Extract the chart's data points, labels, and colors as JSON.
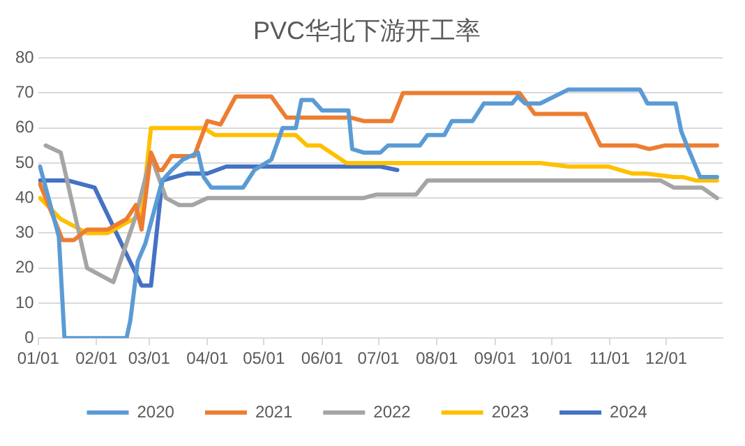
{
  "chart_data": {
    "type": "line",
    "title": "PVC华北下游开工率",
    "xlim": [
      "--01-01",
      "--12-31"
    ],
    "xticks": [
      {
        "value": "--01-01",
        "label": "01/01"
      },
      {
        "value": "--02-01",
        "label": "02/01"
      },
      {
        "value": "--03-01",
        "label": "03/01"
      },
      {
        "value": "--04-01",
        "label": "04/01"
      },
      {
        "value": "--05-01",
        "label": "05/01"
      },
      {
        "value": "--06-01",
        "label": "06/01"
      },
      {
        "value": "--07-01",
        "label": "07/01"
      },
      {
        "value": "--08-01",
        "label": "08/01"
      },
      {
        "value": "--09-01",
        "label": "09/01"
      },
      {
        "value": "--10-01",
        "label": "10/01"
      },
      {
        "value": "--11-01",
        "label": "11/01"
      },
      {
        "value": "--12-01",
        "label": "12/01"
      }
    ],
    "ylim": [
      0,
      80
    ],
    "yticks": [
      0,
      10,
      20,
      30,
      40,
      50,
      60,
      70,
      80
    ],
    "grid": "y",
    "legend": "bottom",
    "marker": "none",
    "line_style": "solid",
    "series": [
      {
        "name": "2020",
        "color": "#5b9bd5",
        "x": [
          "--01-02",
          "--01-12",
          "--01-15",
          "--02-17",
          "--02-19",
          "--02-23",
          "--02-27",
          "--03-03",
          "--03-08",
          "--03-13",
          "--03-19",
          "--03-27",
          "--03-30",
          "--04-03",
          "--04-20",
          "--04-26",
          "--05-05",
          "--05-11",
          "--05-18",
          "--05-21",
          "--05-27",
          "--06-01",
          "--06-15",
          "--06-17",
          "--06-23",
          "--07-02",
          "--07-06",
          "--07-23",
          "--07-27",
          "--08-05",
          "--08-09",
          "--08-20",
          "--08-26",
          "--09-10",
          "--09-13",
          "--09-17",
          "--09-25",
          "--10-10",
          "--11-17",
          "--11-21",
          "--12-06",
          "--12-09",
          "--12-12",
          "--12-19",
          "--12-28"
        ],
        "values": [
          49,
          29,
          0,
          0,
          5,
          22,
          27,
          35,
          45,
          48,
          51,
          53,
          46,
          43,
          43,
          48,
          51,
          60,
          60,
          68,
          68,
          65,
          65,
          54,
          53,
          53,
          55,
          55,
          58,
          58,
          62,
          62,
          67,
          67,
          69,
          67,
          67,
          71,
          71,
          67,
          67,
          59,
          55,
          46,
          46
        ]
      },
      {
        "name": "2021",
        "color": "#ed7d31",
        "x": [
          "--01-02",
          "--01-14",
          "--01-20",
          "--01-27",
          "--02-07",
          "--02-17",
          "--02-22",
          "--02-25",
          "--03-02",
          "--03-06",
          "--03-08",
          "--03-13",
          "--03-25",
          "--04-01",
          "--04-08",
          "--04-16",
          "--05-05",
          "--05-13",
          "--06-16",
          "--06-23",
          "--07-08",
          "--07-14",
          "--09-14",
          "--09-22",
          "--10-19",
          "--10-27",
          "--11-15",
          "--11-22",
          "--11-30",
          "--12-28"
        ],
        "values": [
          44,
          28,
          28,
          31,
          31,
          34,
          38,
          31,
          53,
          48,
          48,
          52,
          52,
          62,
          61,
          69,
          69,
          63,
          63,
          62,
          62,
          70,
          70,
          64,
          64,
          55,
          55,
          54,
          55,
          55
        ]
      },
      {
        "name": "2022",
        "color": "#a5a5a5",
        "x": [
          "--01-05",
          "--01-13",
          "--01-27",
          "--02-10",
          "--02-22",
          "--03-02",
          "--03-10",
          "--03-17",
          "--03-24",
          "--04-01",
          "--06-23",
          "--06-30",
          "--07-21",
          "--07-27",
          "--11-28",
          "--12-05",
          "--12-20",
          "--12-28"
        ],
        "values": [
          55,
          53,
          20,
          16,
          35,
          52,
          40,
          38,
          38,
          40,
          40,
          41,
          41,
          45,
          45,
          43,
          43,
          40
        ]
      },
      {
        "name": "2023",
        "color": "#ffc000",
        "x": [
          "--01-02",
          "--01-13",
          "--01-27",
          "--02-07",
          "--02-17",
          "--02-25",
          "--03-02",
          "--03-30",
          "--04-05",
          "--05-18",
          "--05-24",
          "--05-31",
          "--06-14",
          "--09-25",
          "--10-10",
          "--10-31",
          "--11-13",
          "--11-20",
          "--12-05",
          "--12-10",
          "--12-17",
          "--12-28"
        ],
        "values": [
          40,
          34,
          30,
          30,
          33,
          35,
          60,
          60,
          58,
          58,
          55,
          55,
          50,
          50,
          49,
          49,
          47,
          47,
          46,
          46,
          45,
          45
        ]
      },
      {
        "name": "2024",
        "color": "#4472c4",
        "x": [
          "--01-02",
          "--01-17",
          "--01-31",
          "--02-25",
          "--03-02",
          "--03-08",
          "--03-21",
          "--04-01",
          "--04-11",
          "--07-02",
          "--07-11"
        ],
        "values": [
          45,
          45,
          43,
          15,
          15,
          45,
          47,
          47,
          49,
          49,
          48
        ]
      }
    ]
  }
}
